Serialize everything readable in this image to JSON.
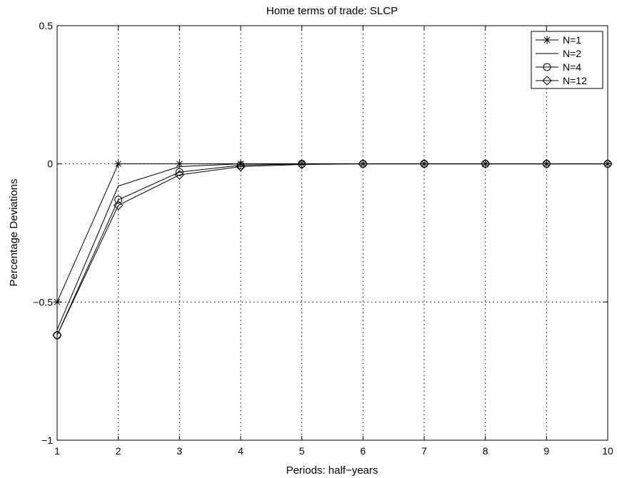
{
  "chart_data": {
    "type": "line",
    "title": "Home terms of trade: SLCP",
    "xlabel": "Periods: half−years",
    "ylabel": "Percentage Deviations",
    "xlim": [
      1,
      10
    ],
    "ylim": [
      -1,
      0.5
    ],
    "x": [
      1,
      2,
      3,
      4,
      5,
      6,
      7,
      8,
      9,
      10
    ],
    "xticks": [
      "1",
      "2",
      "3",
      "4",
      "5",
      "6",
      "7",
      "8",
      "9",
      "10"
    ],
    "yticks": [
      {
        "value": -1,
        "label": "−1"
      },
      {
        "value": -0.5,
        "label": "−0.5"
      },
      {
        "value": 0,
        "label": "0"
      },
      {
        "value": 0.5,
        "label": "0.5"
      }
    ],
    "grid": true,
    "legend_position": "top-right",
    "series": [
      {
        "name": "N=1",
        "marker": "star",
        "values": [
          -0.5,
          0,
          0,
          0,
          0,
          0,
          0,
          0,
          0,
          0
        ]
      },
      {
        "name": "N=2",
        "marker": "none",
        "values": [
          -0.6,
          -0.08,
          -0.01,
          0,
          0,
          0,
          0,
          0,
          0,
          0
        ]
      },
      {
        "name": "N=4",
        "marker": "circle",
        "values": [
          -0.62,
          -0.13,
          -0.03,
          -0.005,
          0,
          0,
          0,
          0,
          0,
          0
        ]
      },
      {
        "name": "N=12",
        "marker": "diamond",
        "values": [
          -0.62,
          -0.15,
          -0.04,
          -0.01,
          -0.002,
          0,
          0,
          0,
          0,
          0
        ]
      }
    ]
  }
}
